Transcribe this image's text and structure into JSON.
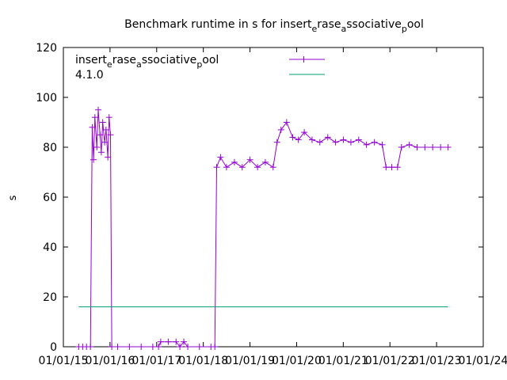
{
  "chart_data": {
    "type": "line",
    "title": "Benchmark runtime in s for insert_erase_associative_pool",
    "title_parts": [
      "Benchmark runtime in s for insert",
      "e",
      "rase",
      "a",
      "ssociative",
      "p",
      "ool"
    ],
    "ylabel": "s",
    "ylim": [
      0,
      120
    ],
    "yticks": [
      0,
      20,
      40,
      60,
      80,
      100,
      120
    ],
    "xlim": [
      "2015-01-01",
      "2024-01-01"
    ],
    "xtick_labels": [
      "01/01/15",
      "01/01/16",
      "01/01/17",
      "01/01/18",
      "01/01/19",
      "01/01/20",
      "01/01/21",
      "01/01/22",
      "01/01/23",
      "01/01/24"
    ],
    "legend_position": "top-left",
    "series": [
      {
        "name": "insert_erase_associative_pool",
        "name_parts": [
          "insert",
          "e",
          "rase",
          "a",
          "ssociative",
          "p",
          "ool"
        ],
        "color": "#9400d3",
        "marker": "plus",
        "points": [
          [
            "2015-05-01",
            0
          ],
          [
            "2015-06-01",
            0
          ],
          [
            "2015-07-01",
            0
          ],
          [
            "2015-08-01",
            0
          ],
          [
            "2015-08-15",
            88
          ],
          [
            "2015-08-25",
            75
          ],
          [
            "2015-09-05",
            92
          ],
          [
            "2015-09-20",
            80
          ],
          [
            "2015-10-01",
            95
          ],
          [
            "2015-10-15",
            85
          ],
          [
            "2015-10-25",
            78
          ],
          [
            "2015-11-05",
            90
          ],
          [
            "2015-11-20",
            82
          ],
          [
            "2015-12-01",
            87
          ],
          [
            "2015-12-15",
            76
          ],
          [
            "2015-12-25",
            92
          ],
          [
            "2016-01-05",
            85
          ],
          [
            "2016-01-15",
            0
          ],
          [
            "2016-03-01",
            0
          ],
          [
            "2016-06-01",
            0
          ],
          [
            "2016-09-01",
            0
          ],
          [
            "2016-12-01",
            0
          ],
          [
            "2017-01-15",
            0
          ],
          [
            "2017-02-01",
            2
          ],
          [
            "2017-04-01",
            2
          ],
          [
            "2017-06-01",
            2
          ],
          [
            "2017-07-01",
            0
          ],
          [
            "2017-08-01",
            2
          ],
          [
            "2017-09-01",
            0
          ],
          [
            "2017-12-01",
            0
          ],
          [
            "2018-03-01",
            0
          ],
          [
            "2018-04-01",
            0
          ],
          [
            "2018-04-15",
            72
          ],
          [
            "2018-05-15",
            76
          ],
          [
            "2018-07-01",
            72
          ],
          [
            "2018-09-01",
            74
          ],
          [
            "2018-11-01",
            72
          ],
          [
            "2019-01-01",
            75
          ],
          [
            "2019-03-01",
            72
          ],
          [
            "2019-05-01",
            74
          ],
          [
            "2019-07-01",
            72
          ],
          [
            "2019-08-01",
            82
          ],
          [
            "2019-09-01",
            87
          ],
          [
            "2019-10-15",
            90
          ],
          [
            "2019-12-01",
            84
          ],
          [
            "2020-01-15",
            83
          ],
          [
            "2020-03-01",
            86
          ],
          [
            "2020-05-01",
            83
          ],
          [
            "2020-07-01",
            82
          ],
          [
            "2020-09-01",
            84
          ],
          [
            "2020-11-01",
            82
          ],
          [
            "2021-01-01",
            83
          ],
          [
            "2021-03-01",
            82
          ],
          [
            "2021-05-01",
            83
          ],
          [
            "2021-07-01",
            81
          ],
          [
            "2021-09-01",
            82
          ],
          [
            "2021-11-01",
            81
          ],
          [
            "2021-12-01",
            72
          ],
          [
            "2022-01-15",
            72
          ],
          [
            "2022-03-01",
            72
          ],
          [
            "2022-04-01",
            80
          ],
          [
            "2022-06-01",
            81
          ],
          [
            "2022-08-01",
            80
          ],
          [
            "2022-10-01",
            80
          ],
          [
            "2022-12-01",
            80
          ],
          [
            "2023-02-01",
            80
          ],
          [
            "2023-04-01",
            80
          ]
        ]
      },
      {
        "name": "4.1.0",
        "color": "#009e73",
        "marker": "none",
        "points": [
          [
            "2015-05-01",
            16
          ],
          [
            "2023-04-01",
            16
          ]
        ]
      }
    ]
  }
}
